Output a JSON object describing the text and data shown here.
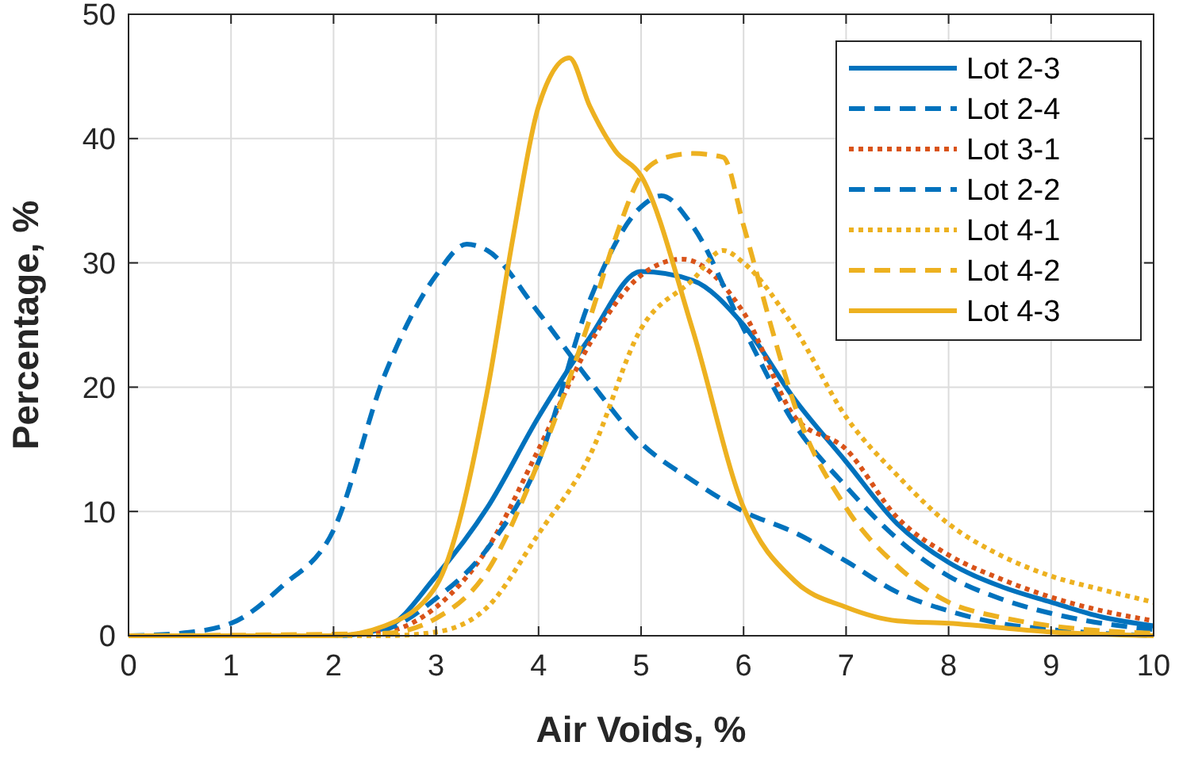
{
  "chart_data": {
    "type": "line",
    "xlabel": "Air Voids, %",
    "ylabel": "Percentage, %",
    "xlim": [
      0,
      10
    ],
    "ylim": [
      0,
      50
    ],
    "xticks": [
      0,
      1,
      2,
      3,
      4,
      5,
      6,
      7,
      8,
      9,
      10
    ],
    "yticks": [
      0,
      10,
      20,
      30,
      40,
      50
    ],
    "grid": true,
    "legend": "top right",
    "series": [
      {
        "name": "Lot 2-3",
        "color": "#0072bd",
        "line_style": "solid",
        "x": [
          0,
          2,
          2.5,
          3,
          3.5,
          4,
          4.5,
          5,
          5.5,
          6,
          6.5,
          7,
          7.5,
          8,
          8.5,
          9,
          9.5,
          10
        ],
        "values": [
          0,
          0,
          0.6,
          4.8,
          10.3,
          17.6,
          24,
          29.3,
          28.6,
          25,
          19,
          14,
          9,
          5.9,
          4,
          2.7,
          1.5,
          0.8
        ]
      },
      {
        "name": "Lot 2-4",
        "color": "#0072bd",
        "line_style": "dashed",
        "x": [
          0,
          0.5,
          1,
          1.5,
          2,
          2.5,
          3,
          3.3,
          3.5,
          4,
          4.5,
          5,
          5.5,
          6,
          6.5,
          7,
          7.5,
          8,
          8.5,
          9,
          10
        ],
        "values": [
          0,
          0.2,
          1,
          4,
          8.5,
          21,
          29,
          31.5,
          31,
          26,
          20.5,
          15.5,
          12.5,
          10,
          8.3,
          6,
          3.5,
          2,
          1,
          0.5,
          0
        ]
      },
      {
        "name": "Lot 3-1",
        "color": "#d95319",
        "line_style": "dotted",
        "x": [
          0,
          2,
          2.5,
          3,
          3.5,
          4,
          4.5,
          5,
          5.4,
          6,
          6.5,
          7,
          7.5,
          8,
          8.5,
          9,
          9.5,
          10
        ],
        "values": [
          0,
          0,
          0.3,
          2.3,
          7,
          15,
          23.5,
          29,
          30.3,
          26,
          17.6,
          15,
          9.5,
          6.5,
          4.6,
          3.1,
          2,
          1.2
        ]
      },
      {
        "name": "Lot 2-2",
        "color": "#0072bd",
        "line_style": "dashed",
        "x": [
          0,
          2,
          2.5,
          3,
          3.5,
          4,
          4.5,
          5,
          5.2,
          5.5,
          6,
          6.5,
          7,
          7.5,
          8,
          8.5,
          9,
          9.5,
          10
        ],
        "values": [
          0,
          0,
          0.5,
          3,
          7,
          14,
          27,
          34.5,
          35.4,
          33,
          24.7,
          17,
          12,
          7.8,
          4.8,
          3,
          1.8,
          1,
          0.5
        ]
      },
      {
        "name": "Lot 4-1",
        "color": "#edb120",
        "line_style": "dotted",
        "x": [
          0,
          2.5,
          3,
          3.5,
          4,
          4.5,
          5,
          5.5,
          5.8,
          6,
          6.5,
          7,
          7.5,
          8,
          8.5,
          9,
          9.5,
          10
        ],
        "values": [
          0,
          0,
          0.3,
          2.3,
          8.2,
          14.5,
          24.7,
          28.6,
          31,
          30,
          24.7,
          17.6,
          12.9,
          9,
          6.5,
          4.8,
          3.7,
          2.7
        ]
      },
      {
        "name": "Lot 4-2",
        "color": "#edb120",
        "line_style": "dashed",
        "x": [
          0,
          2.5,
          3,
          3.5,
          4,
          4.5,
          4.75,
          5,
          5.25,
          5.5,
          5.8,
          6,
          6.3,
          6.5,
          7,
          7.5,
          8,
          8.5,
          9,
          9.5,
          10
        ],
        "values": [
          0,
          0.2,
          1.4,
          5.2,
          14,
          25.5,
          32,
          37,
          38.5,
          38.8,
          38.5,
          33,
          24,
          18.5,
          10.3,
          5.6,
          2.7,
          1.5,
          0.8,
          0.4,
          0.2
        ]
      },
      {
        "name": "Lot 4-3",
        "color": "#edb120",
        "line_style": "solid",
        "x": [
          0,
          2,
          2.5,
          3,
          3.5,
          3.75,
          4,
          4.3,
          4.5,
          4.75,
          5,
          5.5,
          6,
          6.5,
          7,
          7.5,
          8,
          9,
          10
        ],
        "values": [
          0,
          0,
          0.8,
          4,
          19.7,
          32,
          42.6,
          46.5,
          42.6,
          39,
          37,
          24.7,
          10.3,
          4.4,
          2.3,
          1.2,
          1,
          0.3,
          0
        ]
      }
    ]
  }
}
